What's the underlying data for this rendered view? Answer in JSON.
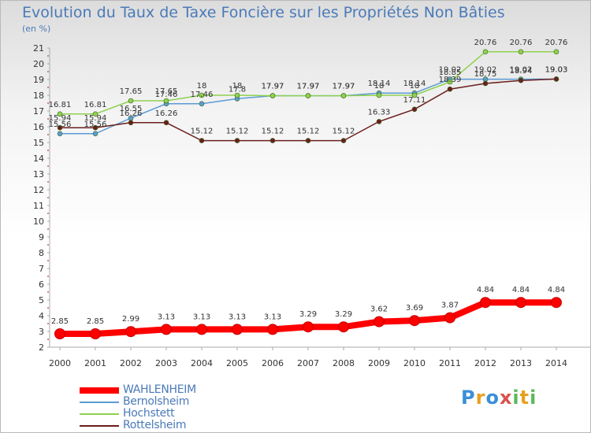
{
  "chart_data": {
    "type": "line",
    "title": "Evolution du Taux de Taxe Foncière sur les Propriétés Non Bâties",
    "ylabel": "(en %)",
    "x": [
      "2000",
      "2001",
      "2002",
      "2003",
      "2004",
      "2005",
      "2006",
      "2007",
      "2008",
      "2009",
      "2010",
      "2011",
      "2012",
      "2013",
      "2014"
    ],
    "ylim": [
      2,
      21
    ],
    "yticks": [
      2,
      3,
      4,
      5,
      6,
      7,
      8,
      9,
      10,
      11,
      12,
      13,
      14,
      15,
      16,
      17,
      18,
      19,
      20,
      21
    ],
    "grid": false,
    "legend_position": "bottom-left",
    "series": [
      {
        "name": "WAHLENHEIM",
        "color": "#ff0000",
        "values": [
          2.85,
          2.85,
          2.99,
          3.13,
          3.13,
          3.13,
          3.13,
          3.29,
          3.29,
          3.62,
          3.69,
          3.87,
          4.84,
          4.84,
          4.84
        ],
        "labels": [
          "2.85",
          "2.85",
          "2.99",
          "3.13",
          "3.13",
          "3.13",
          "3.13",
          "3.29",
          "3.29",
          "3.62",
          "3.69",
          "3.87",
          "4.84",
          "4.84",
          "4.84"
        ]
      },
      {
        "name": "Bernolsheim",
        "color": "#5b9bd5",
        "values": [
          15.56,
          15.56,
          16.55,
          17.46,
          17.46,
          17.78,
          17.97,
          17.97,
          17.97,
          18.14,
          18.14,
          19.02,
          19.02,
          19.02,
          19.03
        ],
        "labels": [
          "15.56",
          "15.56",
          "16.55",
          "17.46",
          "17.46",
          "17.8",
          "17.97",
          "17.97",
          "17.97",
          "18.14",
          "18.14",
          "19.02",
          "19.02",
          "19.02",
          "19.03"
        ]
      },
      {
        "name": "Hochstett",
        "color": "#8fd14f",
        "values": [
          16.81,
          16.81,
          17.65,
          17.65,
          18,
          18,
          17.97,
          17.97,
          17.97,
          18,
          18,
          18.85,
          20.76,
          20.76,
          20.76
        ],
        "labels": [
          "16.81",
          "16.81",
          "17.65",
          "17.65",
          "18",
          "18",
          "17.97",
          "17.97",
          "17.97",
          "18",
          "18",
          "18.85",
          "20.76",
          "20.76",
          "20.76"
        ]
      },
      {
        "name": "Rottelsheim",
        "color": "#6b1e1e",
        "values": [
          15.94,
          15.94,
          16.26,
          16.26,
          15.12,
          15.12,
          15.12,
          15.12,
          15.12,
          16.33,
          17.11,
          18.39,
          18.75,
          18.94,
          19.03
        ],
        "labels": [
          "15.94",
          "15.94",
          "16.26",
          "16.26",
          "15.12",
          "15.12",
          "15.12",
          "15.12",
          "15.12",
          "16.33",
          "17.11",
          "18.39",
          "18.75",
          "18.94",
          "19.03"
        ]
      }
    ]
  },
  "logo": {
    "text": "Proxiti",
    "colors": [
      "#3a8fd8",
      "#e8a020",
      "#5cb85c",
      "#d9534f"
    ]
  }
}
